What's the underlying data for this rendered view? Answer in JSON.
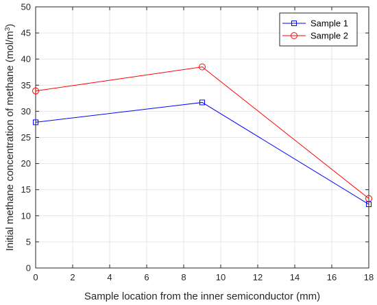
{
  "chart_data": {
    "type": "line",
    "title": "",
    "xlabel": "Sample location from the inner semiconductor (mm)",
    "ylabel": "Initial methane concentration of methane (mol/m",
    "ylabel_sup": "3",
    "ylabel_tail": ")",
    "xlim": [
      0,
      18
    ],
    "ylim": [
      0,
      50
    ],
    "xticks": [
      0,
      2,
      4,
      6,
      8,
      10,
      12,
      14,
      16,
      18
    ],
    "yticks": [
      0,
      5,
      10,
      15,
      20,
      25,
      30,
      35,
      40,
      45,
      50
    ],
    "grid": true,
    "legend_position": "top-right",
    "series": [
      {
        "name": "Sample 1",
        "color": "#0000ff",
        "marker": "square",
        "x": [
          0,
          9,
          18
        ],
        "y": [
          27.9,
          31.7,
          12.2
        ]
      },
      {
        "name": "Sample 2",
        "color": "#ff0000",
        "marker": "circle",
        "x": [
          0,
          9,
          18
        ],
        "y": [
          33.9,
          38.5,
          13.3
        ]
      }
    ]
  }
}
